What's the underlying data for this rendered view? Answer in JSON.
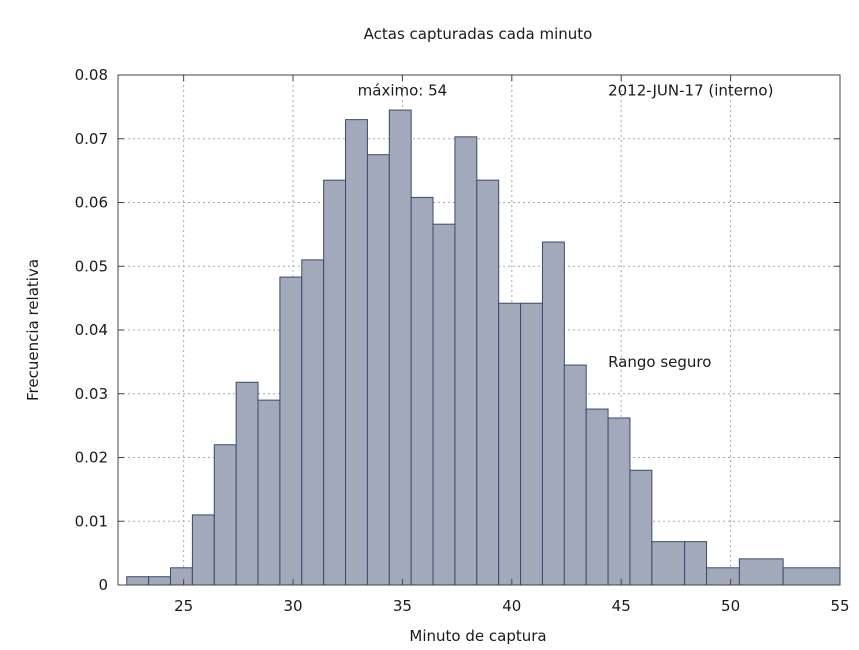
{
  "chart_data": {
    "type": "bar",
    "title": "Actas capturadas cada minuto",
    "xlabel": "Minuto de captura",
    "ylabel": "Frecuencia relativa",
    "xlim": [
      22,
      55
    ],
    "ylim": [
      0,
      0.08
    ],
    "xticks": [
      25,
      30,
      35,
      40,
      45,
      50,
      55
    ],
    "xtick_labels": [
      "25",
      "30",
      "35",
      "40",
      "45",
      "50",
      "55"
    ],
    "yticks": [
      0,
      0.01,
      0.02,
      0.03,
      0.04,
      0.05,
      0.06,
      0.07,
      0.08
    ],
    "ytick_labels": [
      "0",
      "0.01",
      "0.02",
      "0.03",
      "0.04",
      "0.05",
      "0.06",
      "0.07",
      "0.08"
    ],
    "grid": true,
    "bar_fill": "#a2a9ba",
    "bar_edge": "#3c4a6e",
    "bins": [
      {
        "start": 22.4,
        "end": 23.4,
        "value": 0.0013
      },
      {
        "start": 23.4,
        "end": 24.4,
        "value": 0.0013
      },
      {
        "start": 24.4,
        "end": 25.4,
        "value": 0.0027
      },
      {
        "start": 25.4,
        "end": 26.4,
        "value": 0.011
      },
      {
        "start": 26.4,
        "end": 27.4,
        "value": 0.022
      },
      {
        "start": 27.4,
        "end": 28.4,
        "value": 0.0318
      },
      {
        "start": 28.4,
        "end": 29.4,
        "value": 0.029
      },
      {
        "start": 29.4,
        "end": 30.4,
        "value": 0.0483
      },
      {
        "start": 30.4,
        "end": 31.4,
        "value": 0.051
      },
      {
        "start": 31.4,
        "end": 32.4,
        "value": 0.0635
      },
      {
        "start": 32.4,
        "end": 33.4,
        "value": 0.073
      },
      {
        "start": 33.4,
        "end": 34.4,
        "value": 0.0675
      },
      {
        "start": 34.4,
        "end": 35.4,
        "value": 0.0745
      },
      {
        "start": 35.4,
        "end": 36.4,
        "value": 0.0608
      },
      {
        "start": 36.4,
        "end": 37.4,
        "value": 0.0566
      },
      {
        "start": 37.4,
        "end": 38.4,
        "value": 0.0703
      },
      {
        "start": 38.4,
        "end": 39.4,
        "value": 0.0635
      },
      {
        "start": 39.4,
        "end": 40.4,
        "value": 0.0442
      },
      {
        "start": 40.4,
        "end": 41.4,
        "value": 0.0442
      },
      {
        "start": 41.4,
        "end": 42.4,
        "value": 0.0538
      },
      {
        "start": 42.4,
        "end": 43.4,
        "value": 0.0345
      },
      {
        "start": 43.4,
        "end": 44.4,
        "value": 0.0276
      },
      {
        "start": 44.4,
        "end": 45.4,
        "value": 0.0262
      },
      {
        "start": 45.4,
        "end": 46.4,
        "value": 0.018
      },
      {
        "start": 46.4,
        "end": 47.9,
        "value": 0.0068
      },
      {
        "start": 47.9,
        "end": 48.9,
        "value": 0.0068
      },
      {
        "start": 48.9,
        "end": 50.4,
        "value": 0.0027
      },
      {
        "start": 50.4,
        "end": 52.4,
        "value": 0.0041
      },
      {
        "start": 52.4,
        "end": 55.0,
        "value": 0.0027
      }
    ],
    "annotations": [
      {
        "text": "máximo: 54",
        "x": 35.0,
        "y": 0.0768,
        "anchor": "middle"
      },
      {
        "text": "2012-JUN-17 (interno)",
        "x": 44.4,
        "y": 0.0768,
        "anchor": "start"
      },
      {
        "text": "Rango seguro",
        "x": 44.4,
        "y": 0.0342,
        "anchor": "start"
      }
    ]
  }
}
